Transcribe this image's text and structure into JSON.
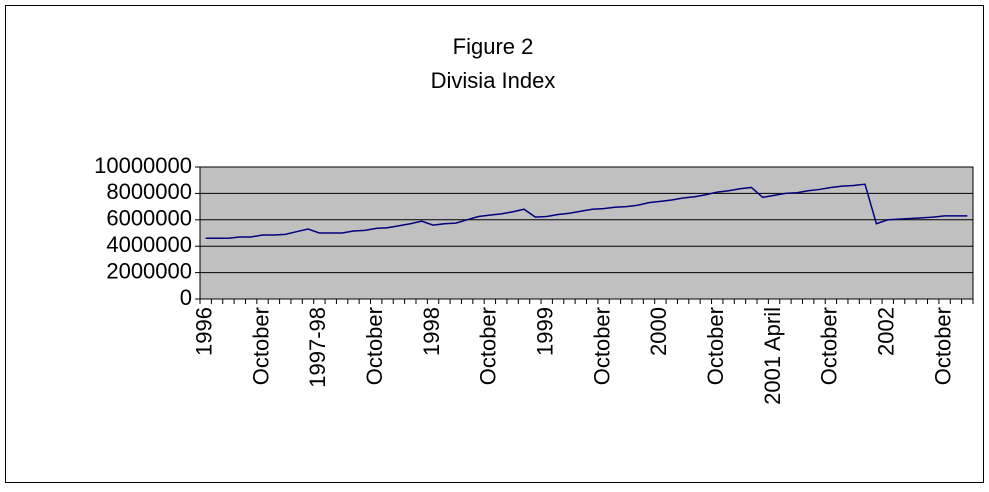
{
  "chart_data": {
    "type": "line",
    "title": "Figure 2",
    "subtitle": "Divisia Index",
    "categories": [
      "1996",
      null,
      null,
      null,
      null,
      "October",
      null,
      null,
      null,
      null,
      "1997-98",
      null,
      null,
      null,
      null,
      "October",
      null,
      null,
      null,
      null,
      "1998",
      null,
      null,
      null,
      null,
      "October",
      null,
      null,
      null,
      null,
      "1999",
      null,
      null,
      null,
      null,
      "October",
      null,
      null,
      null,
      null,
      "2000",
      null,
      null,
      null,
      null,
      "October",
      null,
      null,
      null,
      null,
      "2001 April",
      null,
      null,
      null,
      null,
      "October",
      null,
      null,
      null,
      null,
      "2002",
      null,
      null,
      null,
      null,
      "October",
      null,
      null
    ],
    "series": [
      {
        "name": "Divisia Index",
        "color": "#000080",
        "values": [
          4600000,
          4600000,
          4600000,
          4700000,
          4700000,
          4850000,
          4850000,
          4900000,
          5100000,
          5300000,
          5000000,
          5000000,
          5000000,
          5150000,
          5200000,
          5350000,
          5400000,
          5550000,
          5700000,
          5900000,
          5600000,
          5700000,
          5750000,
          6000000,
          6250000,
          6350000,
          6450000,
          6600000,
          6800000,
          6200000,
          6250000,
          6400000,
          6500000,
          6650000,
          6800000,
          6850000,
          6950000,
          7000000,
          7100000,
          7300000,
          7400000,
          7500000,
          7650000,
          7750000,
          7900000,
          8100000,
          8200000,
          8350000,
          8450000,
          7700000,
          7850000,
          8000000,
          8050000,
          8200000,
          8300000,
          8450000,
          8550000,
          8600000,
          8700000,
          5700000,
          6000000,
          6050000,
          6100000,
          6150000,
          6200000,
          6300000,
          6300000,
          6300000
        ]
      }
    ],
    "ylim": [
      0,
      10000000
    ],
    "yticks": [
      0,
      2000000,
      4000000,
      6000000,
      8000000,
      10000000
    ],
    "grid": true,
    "plot_background": "#c0c0c0"
  }
}
